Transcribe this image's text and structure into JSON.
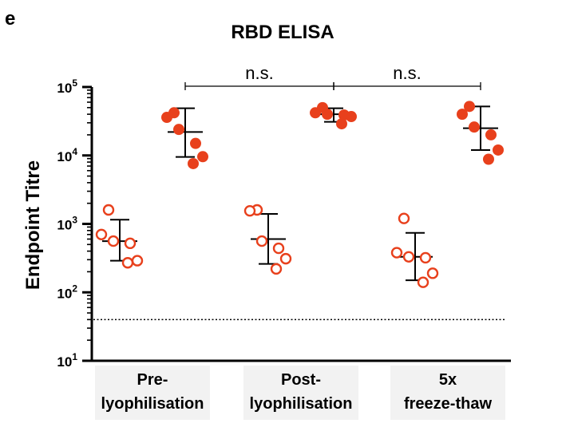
{
  "panel_label": "e",
  "chart_data": {
    "type": "scatter",
    "title": "RBD ELISA",
    "ylabel": "Endpoint Titre",
    "yscale": "log",
    "ylim": [
      10,
      100000
    ],
    "y_ticks": [
      {
        "value": 10,
        "base": "10",
        "exp": "1"
      },
      {
        "value": 100,
        "base": "10",
        "exp": "2"
      },
      {
        "value": 1000,
        "base": "10",
        "exp": "3"
      },
      {
        "value": 10000,
        "base": "10",
        "exp": "4"
      },
      {
        "value": 100000,
        "base": "10",
        "exp": "5"
      }
    ],
    "groups": [
      {
        "label_lines": [
          "Pre-",
          "lyophilisation"
        ]
      },
      {
        "label_lines": [
          "Post-",
          "lyophilisation"
        ]
      },
      {
        "label_lines": [
          "5x",
          "freeze-thaw"
        ]
      }
    ],
    "series": [
      {
        "marker": "open-circle",
        "color": "#e8401c",
        "groups": [
          {
            "points": [
              1600,
              700,
              560,
              520,
              290,
              270
            ],
            "mean": 560,
            "sd_low": 290,
            "sd_high": 1150
          },
          {
            "points": [
              1600,
              1550,
              560,
              440,
              310,
              220
            ],
            "mean": 600,
            "sd_low": 260,
            "sd_high": 1400
          },
          {
            "points": [
              1200,
              380,
              330,
              320,
              190,
              140
            ],
            "mean": 330,
            "sd_low": 150,
            "sd_high": 740
          }
        ]
      },
      {
        "marker": "filled-circle",
        "color": "#e8401c",
        "groups": [
          {
            "points": [
              42000,
              36000,
              24000,
              15000,
              9600,
              7600
            ],
            "mean": 22000,
            "sd_low": 9500,
            "sd_high": 49000
          },
          {
            "points": [
              50000,
              42000,
              40000,
              39000,
              37000,
              29000
            ],
            "mean": 40000,
            "sd_low": 31000,
            "sd_high": 49000
          },
          {
            "points": [
              52000,
              40000,
              26000,
              20000,
              12000,
              8800
            ],
            "mean": 25000,
            "sd_low": 12000,
            "sd_high": 52000
          }
        ]
      }
    ],
    "threshold": {
      "value": 40,
      "style": "dotted"
    },
    "comparisons": [
      {
        "from_group": 0,
        "to_group": 1,
        "label": "n.s."
      },
      {
        "from_group": 1,
        "to_group": 2,
        "label": "n.s."
      }
    ],
    "grid": false,
    "legend": "none"
  }
}
